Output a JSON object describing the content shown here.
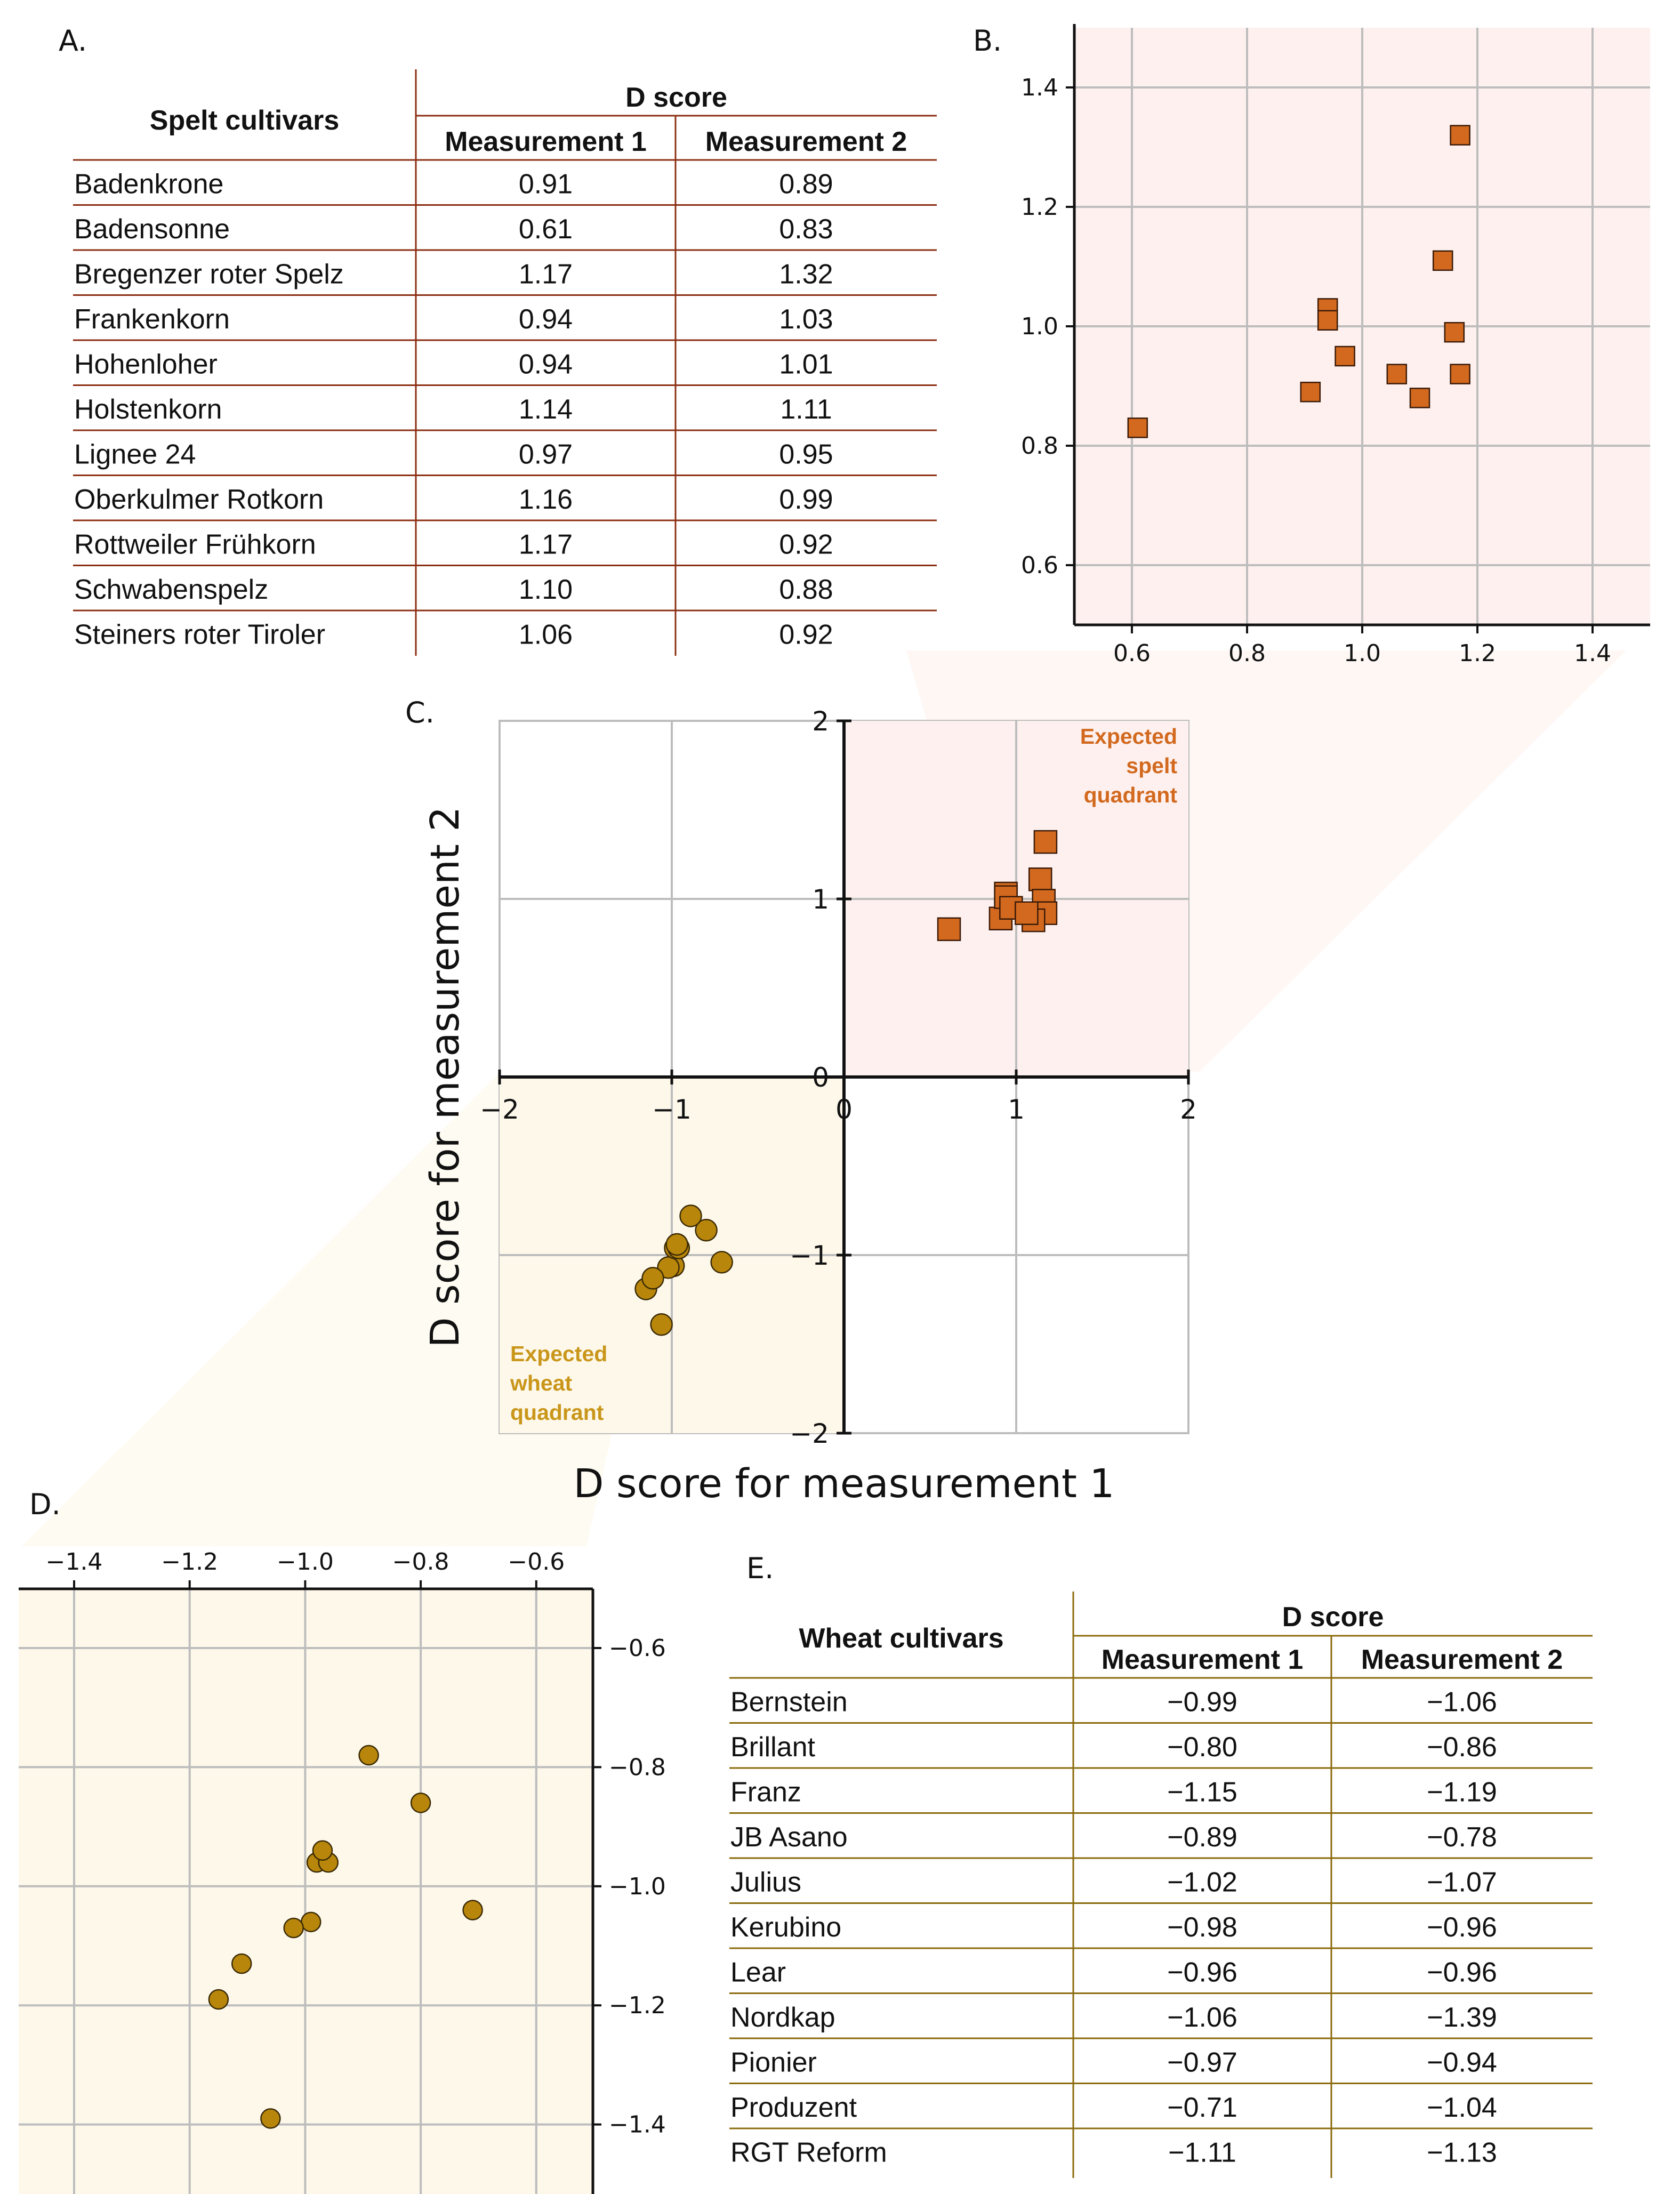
{
  "panels": {
    "a": "A.",
    "b": "B.",
    "c": "C.",
    "d": "D.",
    "e": "E."
  },
  "colors": {
    "spelt": "#d2691e",
    "wheat": "#b8860b",
    "spelt_rule": "#8b2e12",
    "wheat_rule": "#8a6a0a",
    "spelt_bg": "#fdf0ee",
    "wheat_bg": "#fdf8ea",
    "grid": "#bdbdbd"
  },
  "spelt_table": {
    "title": "Spelt cultivars",
    "group_header": "D score",
    "col1": "Measurement 1",
    "col2": "Measurement 2",
    "rows": [
      {
        "name": "Badenkrone",
        "m1": "0.91",
        "m2": "0.89"
      },
      {
        "name": "Badensonne",
        "m1": "0.61",
        "m2": "0.83"
      },
      {
        "name": "Bregenzer roter Spelz",
        "m1": "1.17",
        "m2": "1.32"
      },
      {
        "name": "Frankenkorn",
        "m1": "0.94",
        "m2": "1.03"
      },
      {
        "name": "Hohenloher",
        "m1": "0.94",
        "m2": "1.01"
      },
      {
        "name": "Holstenkorn",
        "m1": "1.14",
        "m2": "1.11"
      },
      {
        "name": "Lignee 24",
        "m1": "0.97",
        "m2": "0.95"
      },
      {
        "name": "Oberkulmer Rotkorn",
        "m1": "1.16",
        "m2": "0.99"
      },
      {
        "name": "Rottweiler Frühkorn",
        "m1": "1.17",
        "m2": "0.92"
      },
      {
        "name": "Schwabenspelz",
        "m1": "1.10",
        "m2": "0.88"
      },
      {
        "name": "Steiners roter Tiroler",
        "m1": "1.06",
        "m2": "0.92"
      }
    ]
  },
  "wheat_table": {
    "title": "Wheat cultivars",
    "group_header": "D score",
    "col1": "Measurement 1",
    "col2": "Measurement 2",
    "rows": [
      {
        "name": "Bernstein",
        "m1": "−0.99",
        "m2": "−1.06"
      },
      {
        "name": "Brillant",
        "m1": "−0.80",
        "m2": "−0.86"
      },
      {
        "name": "Franz",
        "m1": "−1.15",
        "m2": "−1.19"
      },
      {
        "name": "JB Asano",
        "m1": "−0.89",
        "m2": "−0.78"
      },
      {
        "name": "Julius",
        "m1": "−1.02",
        "m2": "−1.07"
      },
      {
        "name": "Kerubino",
        "m1": "−0.98",
        "m2": "−0.96"
      },
      {
        "name": "Lear",
        "m1": "−0.96",
        "m2": "−0.96"
      },
      {
        "name": "Nordkap",
        "m1": "−1.06",
        "m2": "−1.39"
      },
      {
        "name": "Pionier",
        "m1": "−0.97",
        "m2": "−0.94"
      },
      {
        "name": "Produzent",
        "m1": "−0.71",
        "m2": "−1.04"
      },
      {
        "name": "RGT Reform",
        "m1": "−1.11",
        "m2": "−1.13"
      }
    ]
  },
  "chart_data": [
    {
      "id": "B",
      "type": "scatter",
      "marker": "square",
      "title": "",
      "xlim": [
        0.5,
        1.5
      ],
      "ylim": [
        0.5,
        1.5
      ],
      "xticks": [
        0.6,
        0.8,
        1.0,
        1.2,
        1.4
      ],
      "yticks": [
        0.6,
        0.8,
        1.0,
        1.2,
        1.4
      ],
      "xtick_labels": [
        "0.6",
        "0.8",
        "1.0",
        "1.2",
        "1.4"
      ],
      "ytick_labels": [
        "0.6",
        "0.8",
        "1.0",
        "1.2",
        "1.4"
      ],
      "grid": true,
      "series": [
        {
          "name": "Spelt",
          "x": [
            0.91,
            0.61,
            1.17,
            0.94,
            0.94,
            1.14,
            0.97,
            1.16,
            1.17,
            1.1,
            1.06
          ],
          "y": [
            0.89,
            0.83,
            1.32,
            1.03,
            1.01,
            1.11,
            0.95,
            0.99,
            0.92,
            0.88,
            0.92
          ]
        }
      ]
    },
    {
      "id": "C",
      "type": "scatter",
      "title": "",
      "xlabel": "D score for measurement 1",
      "ylabel": "D score for measurement 2",
      "xlim": [
        -2,
        2
      ],
      "ylim": [
        -2,
        2
      ],
      "xticks": [
        -2,
        -1,
        0,
        1,
        2
      ],
      "yticks": [
        -2,
        -1,
        0,
        1,
        2
      ],
      "xtick_labels": [
        "−2",
        "−1",
        "0",
        "1",
        "2"
      ],
      "ytick_labels": [
        "−2",
        "−1",
        "0",
        "1",
        "2"
      ],
      "grid": true,
      "annotations": {
        "spelt": [
          "Expected",
          "spelt",
          "quadrant"
        ],
        "wheat": [
          "Expected",
          "wheat",
          "quadrant"
        ]
      },
      "series": [
        {
          "name": "Spelt",
          "marker": "square",
          "x": [
            0.91,
            0.61,
            1.17,
            0.94,
            0.94,
            1.14,
            0.97,
            1.16,
            1.17,
            1.1,
            1.06
          ],
          "y": [
            0.89,
            0.83,
            1.32,
            1.03,
            1.01,
            1.11,
            0.95,
            0.99,
            0.92,
            0.88,
            0.92
          ]
        },
        {
          "name": "Wheat",
          "marker": "circle",
          "x": [
            -0.99,
            -0.8,
            -1.15,
            -0.89,
            -1.02,
            -0.98,
            -0.96,
            -1.06,
            -0.97,
            -0.71,
            -1.11
          ],
          "y": [
            -1.06,
            -0.86,
            -1.19,
            -0.78,
            -1.07,
            -0.96,
            -0.96,
            -1.39,
            -0.94,
            -1.04,
            -1.13
          ]
        }
      ]
    },
    {
      "id": "D",
      "type": "scatter",
      "marker": "circle",
      "title": "",
      "xlim": [
        -1.5,
        -0.5
      ],
      "ylim": [
        -1.5,
        -0.5
      ],
      "xticks": [
        -1.4,
        -1.2,
        -1.0,
        -0.8,
        -0.6
      ],
      "yticks": [
        -0.6,
        -0.8,
        -1.0,
        -1.2,
        -1.4
      ],
      "xtick_labels": [
        "−1.4",
        "−1.2",
        "−1.0",
        "−0.8",
        "−0.6"
      ],
      "ytick_labels": [
        "−0.6",
        "−0.8",
        "−1.0",
        "−1.2",
        "−1.4"
      ],
      "grid": true,
      "series": [
        {
          "name": "Wheat",
          "x": [
            -0.99,
            -0.8,
            -1.15,
            -0.89,
            -1.02,
            -0.98,
            -0.96,
            -1.06,
            -0.97,
            -0.71,
            -1.11
          ],
          "y": [
            -1.06,
            -0.86,
            -1.19,
            -0.78,
            -1.07,
            -0.96,
            -0.96,
            -1.39,
            -0.94,
            -1.04,
            -1.13
          ]
        }
      ]
    }
  ]
}
